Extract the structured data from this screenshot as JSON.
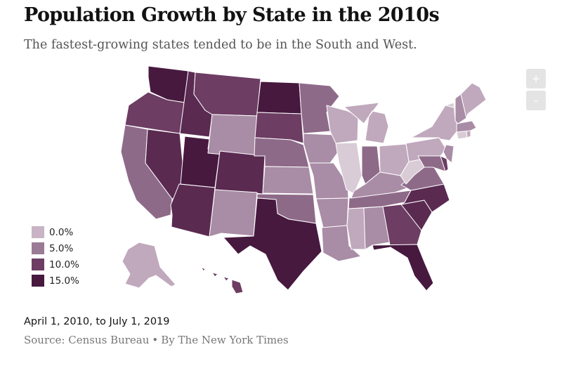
{
  "header": {
    "title": "Population Growth by State in the 2010s",
    "subtitle": "The fastest-growing states tended to be in the South and West."
  },
  "zoom": {
    "in_label": "+",
    "out_label": "–"
  },
  "legend": {
    "items": [
      {
        "label": "0.0%",
        "color": "#c8b4c5"
      },
      {
        "label": "5.0%",
        "color": "#9a7b96"
      },
      {
        "label": "10.0%",
        "color": "#6d3d63"
      },
      {
        "label": "15.0%",
        "color": "#47193f"
      }
    ]
  },
  "colors": {
    "slow": "#d9ccd6",
    "low": "#c0a8bd",
    "mid": "#a98ca5",
    "midhigh": "#8e6a89",
    "high": "#6d3d63",
    "fast": "#5a2a51",
    "fastest": "#47193f"
  },
  "footer": {
    "date_range": "April 1, 2010, to July 1, 2019",
    "source": "Source: Census Bureau",
    "byline": "By The New York Times"
  }
}
